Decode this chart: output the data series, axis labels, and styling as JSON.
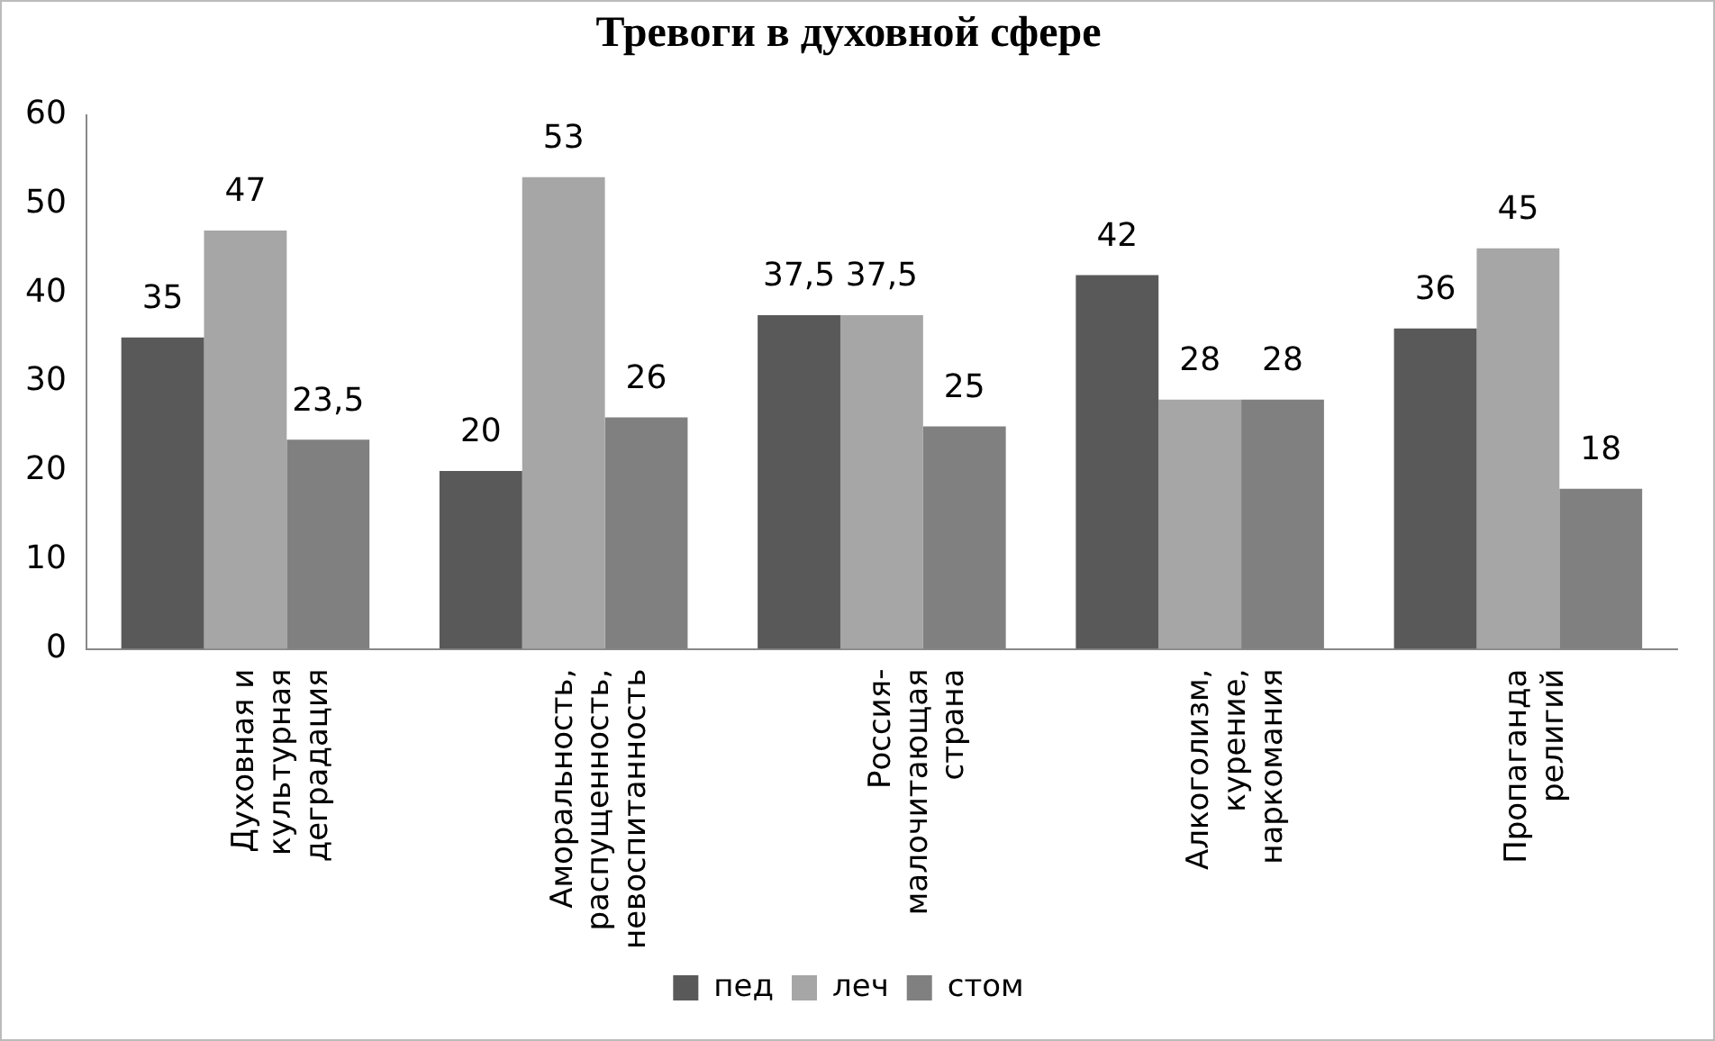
{
  "chart_data": {
    "type": "bar",
    "title": "Тревоги в духовной сфере",
    "categories": [
      "Духовная и культурная деградация",
      "Аморальность, распущенность, невоспитанность",
      "Россия-малочитающая страна",
      "Алкоголизм, курение, наркомания",
      "Пропаганда религий"
    ],
    "series": [
      {
        "name": "пед",
        "color": "#595959",
        "values": [
          35,
          20,
          37.5,
          42,
          36
        ],
        "value_labels": [
          "35",
          "20",
          "37,5",
          "42",
          "36"
        ]
      },
      {
        "name": "леч",
        "color": "#a6a6a6",
        "values": [
          47,
          53,
          37.5,
          28,
          45
        ],
        "value_labels": [
          "47",
          "53",
          "37,5",
          "28",
          "45"
        ]
      },
      {
        "name": "стом",
        "color": "#808080",
        "values": [
          23.5,
          26,
          25,
          28,
          18
        ],
        "value_labels": [
          "23,5",
          "26",
          "25",
          "28",
          "18"
        ]
      }
    ],
    "ylim": [
      0,
      60
    ],
    "yticks": [
      0,
      10,
      20,
      30,
      40,
      50,
      60
    ],
    "grid": false,
    "legend": "bottom"
  }
}
